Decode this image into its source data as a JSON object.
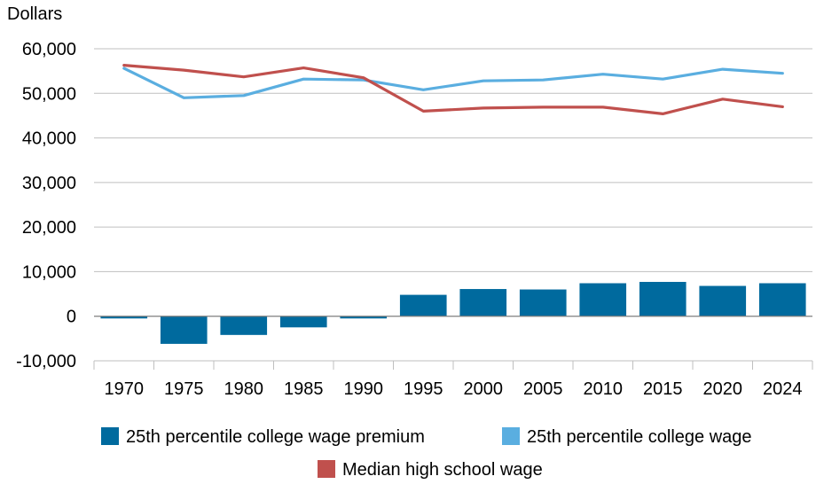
{
  "chart_data": {
    "type": "bar",
    "unit_label": "Dollars",
    "ylim": [
      -10000,
      60000
    ],
    "y_ticks": [
      -10000,
      0,
      10000,
      20000,
      30000,
      40000,
      50000,
      60000
    ],
    "y_tick_labels": [
      "-10,000",
      "0",
      "10,000",
      "20,000",
      "30,000",
      "40,000",
      "50,000",
      "60,000"
    ],
    "grid": true,
    "legend_position": "bottom",
    "categories": [
      "1970",
      "1975",
      "1980",
      "1985",
      "1990",
      "1995",
      "2000",
      "2005",
      "2010",
      "2015",
      "2020",
      "2024"
    ],
    "series": [
      {
        "name": "25th percentile college wage premium",
        "type": "bar",
        "color": "#006a9e",
        "values": [
          -500,
          -6200,
          -4200,
          -2500,
          -500,
          4800,
          6100,
          6000,
          7400,
          7700,
          6800,
          7400
        ]
      },
      {
        "name": "25th percentile college wage",
        "type": "line",
        "color": "#5aaee0",
        "values": [
          55600,
          49000,
          49500,
          53200,
          53000,
          50800,
          52800,
          53000,
          54300,
          53200,
          55400,
          54500
        ]
      },
      {
        "name": "Median high school wage",
        "type": "line",
        "color": "#c0504d",
        "values": [
          56300,
          55200,
          53700,
          55700,
          53500,
          46000,
          46700,
          46900,
          46900,
          45400,
          48700,
          47000
        ]
      }
    ]
  }
}
